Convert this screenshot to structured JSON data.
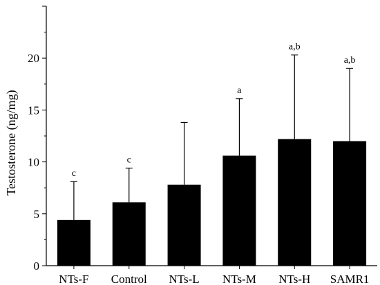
{
  "chart_data": {
    "type": "bar",
    "title": "",
    "xlabel": "",
    "ylabel": "Testosterone (ng/mg)",
    "ylim": [
      0,
      25
    ],
    "yticks": [
      0,
      5,
      10,
      15,
      20
    ],
    "grid": false,
    "error_bars": "upper",
    "categories": [
      "NTs-F",
      "Control",
      "NTs-L",
      "NTs-M",
      "NTs-H",
      "SAMR1"
    ],
    "values": [
      4.4,
      6.1,
      7.8,
      10.6,
      12.2,
      12.0
    ],
    "error_upper": [
      8.1,
      9.4,
      13.8,
      16.1,
      20.3,
      19.0
    ],
    "annotations": [
      "c",
      "c",
      "",
      "a",
      "a,b",
      "a,b"
    ],
    "colors": {
      "bar": "#000000",
      "axis": "#000000"
    }
  }
}
